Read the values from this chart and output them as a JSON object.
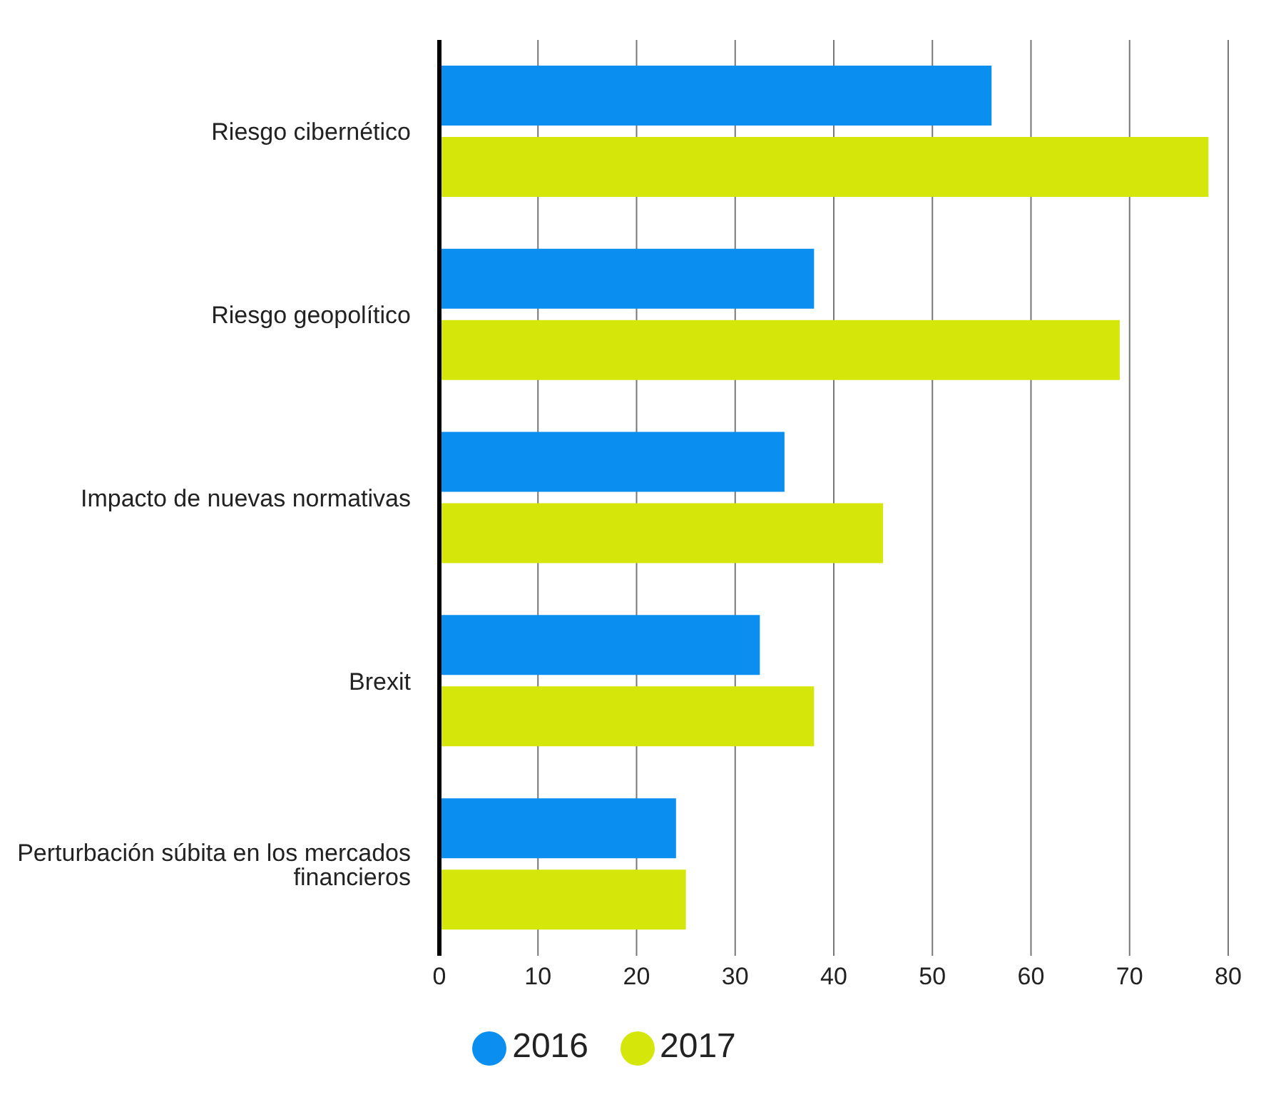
{
  "chart_data": {
    "type": "bar",
    "orientation": "horizontal",
    "categories": [
      "Riesgo cibernético",
      "Riesgo geopolítico",
      "Impacto de nuevas normativas",
      "Brexit",
      "Perturbación súbita en los mercados financieros"
    ],
    "series": [
      {
        "name": "2016",
        "color": "#0a8ef0",
        "values": [
          56,
          38,
          35,
          32.5,
          24
        ]
      },
      {
        "name": "2017",
        "color": "#d4e60a",
        "values": [
          78,
          69,
          45,
          38,
          25
        ]
      }
    ],
    "xlim": [
      0,
      80
    ],
    "xticks": [
      0,
      10,
      20,
      30,
      40,
      50,
      60,
      70,
      80
    ],
    "grid": "x",
    "legend": "bottom"
  }
}
